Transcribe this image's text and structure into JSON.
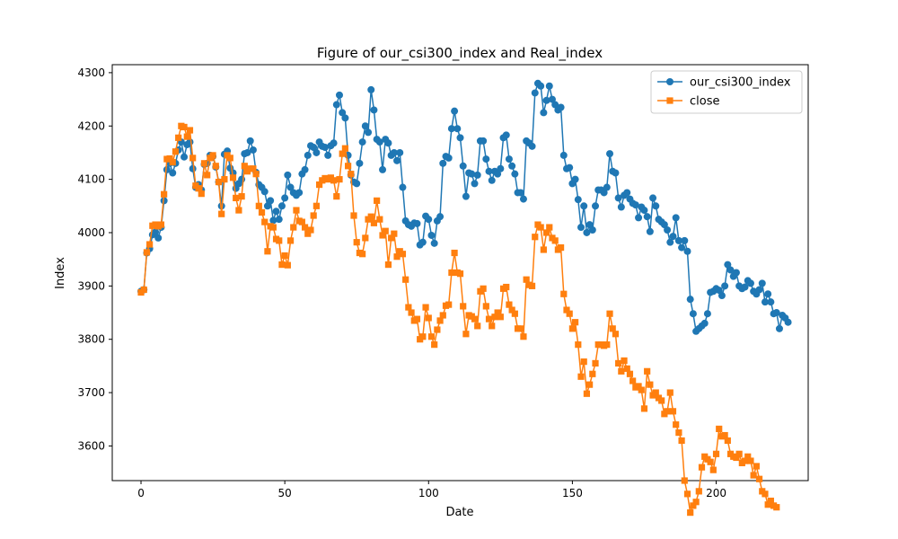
{
  "chart_data": {
    "type": "line",
    "title": "Figure of our_csi300_index and Real_index",
    "xlabel": "Date",
    "ylabel": "Index",
    "xlim": [
      -10,
      232
    ],
    "ylim": [
      3535,
      4315
    ],
    "xticks": [
      0,
      50,
      100,
      150,
      200
    ],
    "yticks": [
      3500,
      3600,
      3700,
      3800,
      3900,
      4000,
      4100,
      4200,
      4300
    ],
    "grid": false,
    "legend_position": "top-right",
    "series": [
      {
        "name": "our_csi300_index",
        "color": "#1f77b4",
        "marker": "circle",
        "values": [
          3890,
          3893,
          3962,
          3970,
          3996,
          4001,
          3990,
          4010,
          4060,
          4118,
          4130,
          4112,
          4130,
          4155,
          4170,
          4142,
          4165,
          4170,
          4120,
          4085,
          4090,
          4080,
          4128,
          4130,
          4145,
          4143,
          4123,
          4095,
          4050,
          4147,
          4153,
          4121,
          4112,
          4083,
          4092,
          4100,
          4148,
          4150,
          4172,
          4155,
          4113,
          4090,
          4085,
          4077,
          4050,
          4060,
          4023,
          4040,
          4025,
          4050,
          4065,
          4108,
          4085,
          4075,
          4070,
          4075,
          4110,
          4118,
          4145,
          4163,
          4160,
          4150,
          4170,
          4162,
          4160,
          4145,
          4163,
          4168,
          4240,
          4258,
          4225,
          4215,
          4145,
          4108,
          4095,
          4092,
          4130,
          4170,
          4200,
          4188,
          4268,
          4230,
          4175,
          4170,
          4118,
          4175,
          4168,
          4145,
          4150,
          4135,
          4150,
          4085,
          4022,
          4015,
          4012,
          4018,
          4017,
          3977,
          3982,
          4031,
          4025,
          3995,
          3980,
          4022,
          4030,
          4130,
          4143,
          4140,
          4195,
          4228,
          4195,
          4178,
          4125,
          4068,
          4112,
          4110,
          4092,
          4108,
          4172,
          4172,
          4138,
          4115,
          4098,
          4115,
          4110,
          4120,
          4178,
          4183,
          4138,
          4125,
          4110,
          4075,
          4075,
          4063,
          4172,
          4168,
          4162,
          4262,
          4280,
          4275,
          4225,
          4248,
          4275,
          4250,
          4240,
          4230,
          4235,
          4145,
          4120,
          4122,
          4092,
          4100,
          4062,
          4010,
          4050,
          4000,
          4015,
          4005,
          4050,
          4080,
          4080,
          4075,
          4085,
          4148,
          4115,
          4112,
          4065,
          4048,
          4070,
          4075,
          4063,
          4055,
          4052,
          4028,
          4048,
          4042,
          4030,
          4002,
          4065,
          4050,
          4025,
          4020,
          4015,
          4005,
          3982,
          3993,
          4028,
          3985,
          3972,
          3985,
          3965,
          3875,
          3848,
          3815,
          3820,
          3825,
          3830,
          3848,
          3888,
          3890,
          3895,
          3892,
          3882,
          3900,
          3940,
          3930,
          3918,
          3925,
          3900,
          3895,
          3898,
          3910,
          3905,
          3890,
          3885,
          3893,
          3905,
          3870,
          3885,
          3870,
          3848,
          3850,
          3820,
          3845,
          3840,
          3832
        ]
      },
      {
        "name": "close",
        "color": "#ff7f0e",
        "marker": "square",
        "values": [
          3888,
          3893,
          3963,
          3978,
          4013,
          4015,
          4012,
          4015,
          4072,
          4138,
          4139,
          4132,
          4152,
          4178,
          4200,
          4198,
          4180,
          4192,
          4140,
          4088,
          4083,
          4073,
          4130,
          4108,
          4140,
          4145,
          4125,
          4095,
          4035,
          4100,
          4145,
          4140,
          4103,
          4065,
          4042,
          4068,
          4125,
          4115,
          4120,
          4120,
          4110,
          4050,
          4038,
          4020,
          3965,
          4012,
          4010,
          3988,
          3985,
          3940,
          3957,
          3939,
          3985,
          4010,
          4042,
          4022,
          4020,
          4010,
          3998,
          4005,
          4032,
          4050,
          4090,
          4098,
          4102,
          4100,
          4103,
          4098,
          4068,
          4100,
          4148,
          4158,
          4125,
          4110,
          4032,
          3982,
          3962,
          3960,
          3990,
          4025,
          4030,
          4018,
          4060,
          4025,
          3995,
          4003,
          3940,
          3990,
          3998,
          3955,
          3965,
          3960,
          3912,
          3860,
          3850,
          3835,
          3838,
          3800,
          3805,
          3860,
          3840,
          3805,
          3790,
          3818,
          3835,
          3845,
          3863,
          3865,
          3925,
          3962,
          3925,
          3923,
          3862,
          3810,
          3845,
          3843,
          3838,
          3825,
          3890,
          3895,
          3862,
          3838,
          3825,
          3842,
          3850,
          3842,
          3895,
          3898,
          3865,
          3855,
          3848,
          3820,
          3820,
          3805,
          3912,
          3902,
          3900,
          3992,
          4015,
          4010,
          3968,
          4000,
          4010,
          3990,
          3985,
          3968,
          3972,
          3885,
          3855,
          3848,
          3820,
          3832,
          3790,
          3730,
          3758,
          3698,
          3715,
          3735,
          3755,
          3790,
          3790,
          3788,
          3790,
          3848,
          3820,
          3810,
          3755,
          3740,
          3760,
          3745,
          3735,
          3722,
          3710,
          3712,
          3705,
          3670,
          3740,
          3715,
          3695,
          3700,
          3690,
          3685,
          3660,
          3665,
          3700,
          3665,
          3640,
          3625,
          3610,
          3535,
          3510,
          3475,
          3488,
          3495,
          3515,
          3560,
          3580,
          3575,
          3570,
          3555,
          3585,
          3632,
          3618,
          3620,
          3610,
          3585,
          3580,
          3578,
          3585,
          3568,
          3572,
          3580,
          3572,
          3545,
          3562,
          3538,
          3515,
          3510,
          3490,
          3497,
          3488,
          3485
        ]
      }
    ]
  }
}
